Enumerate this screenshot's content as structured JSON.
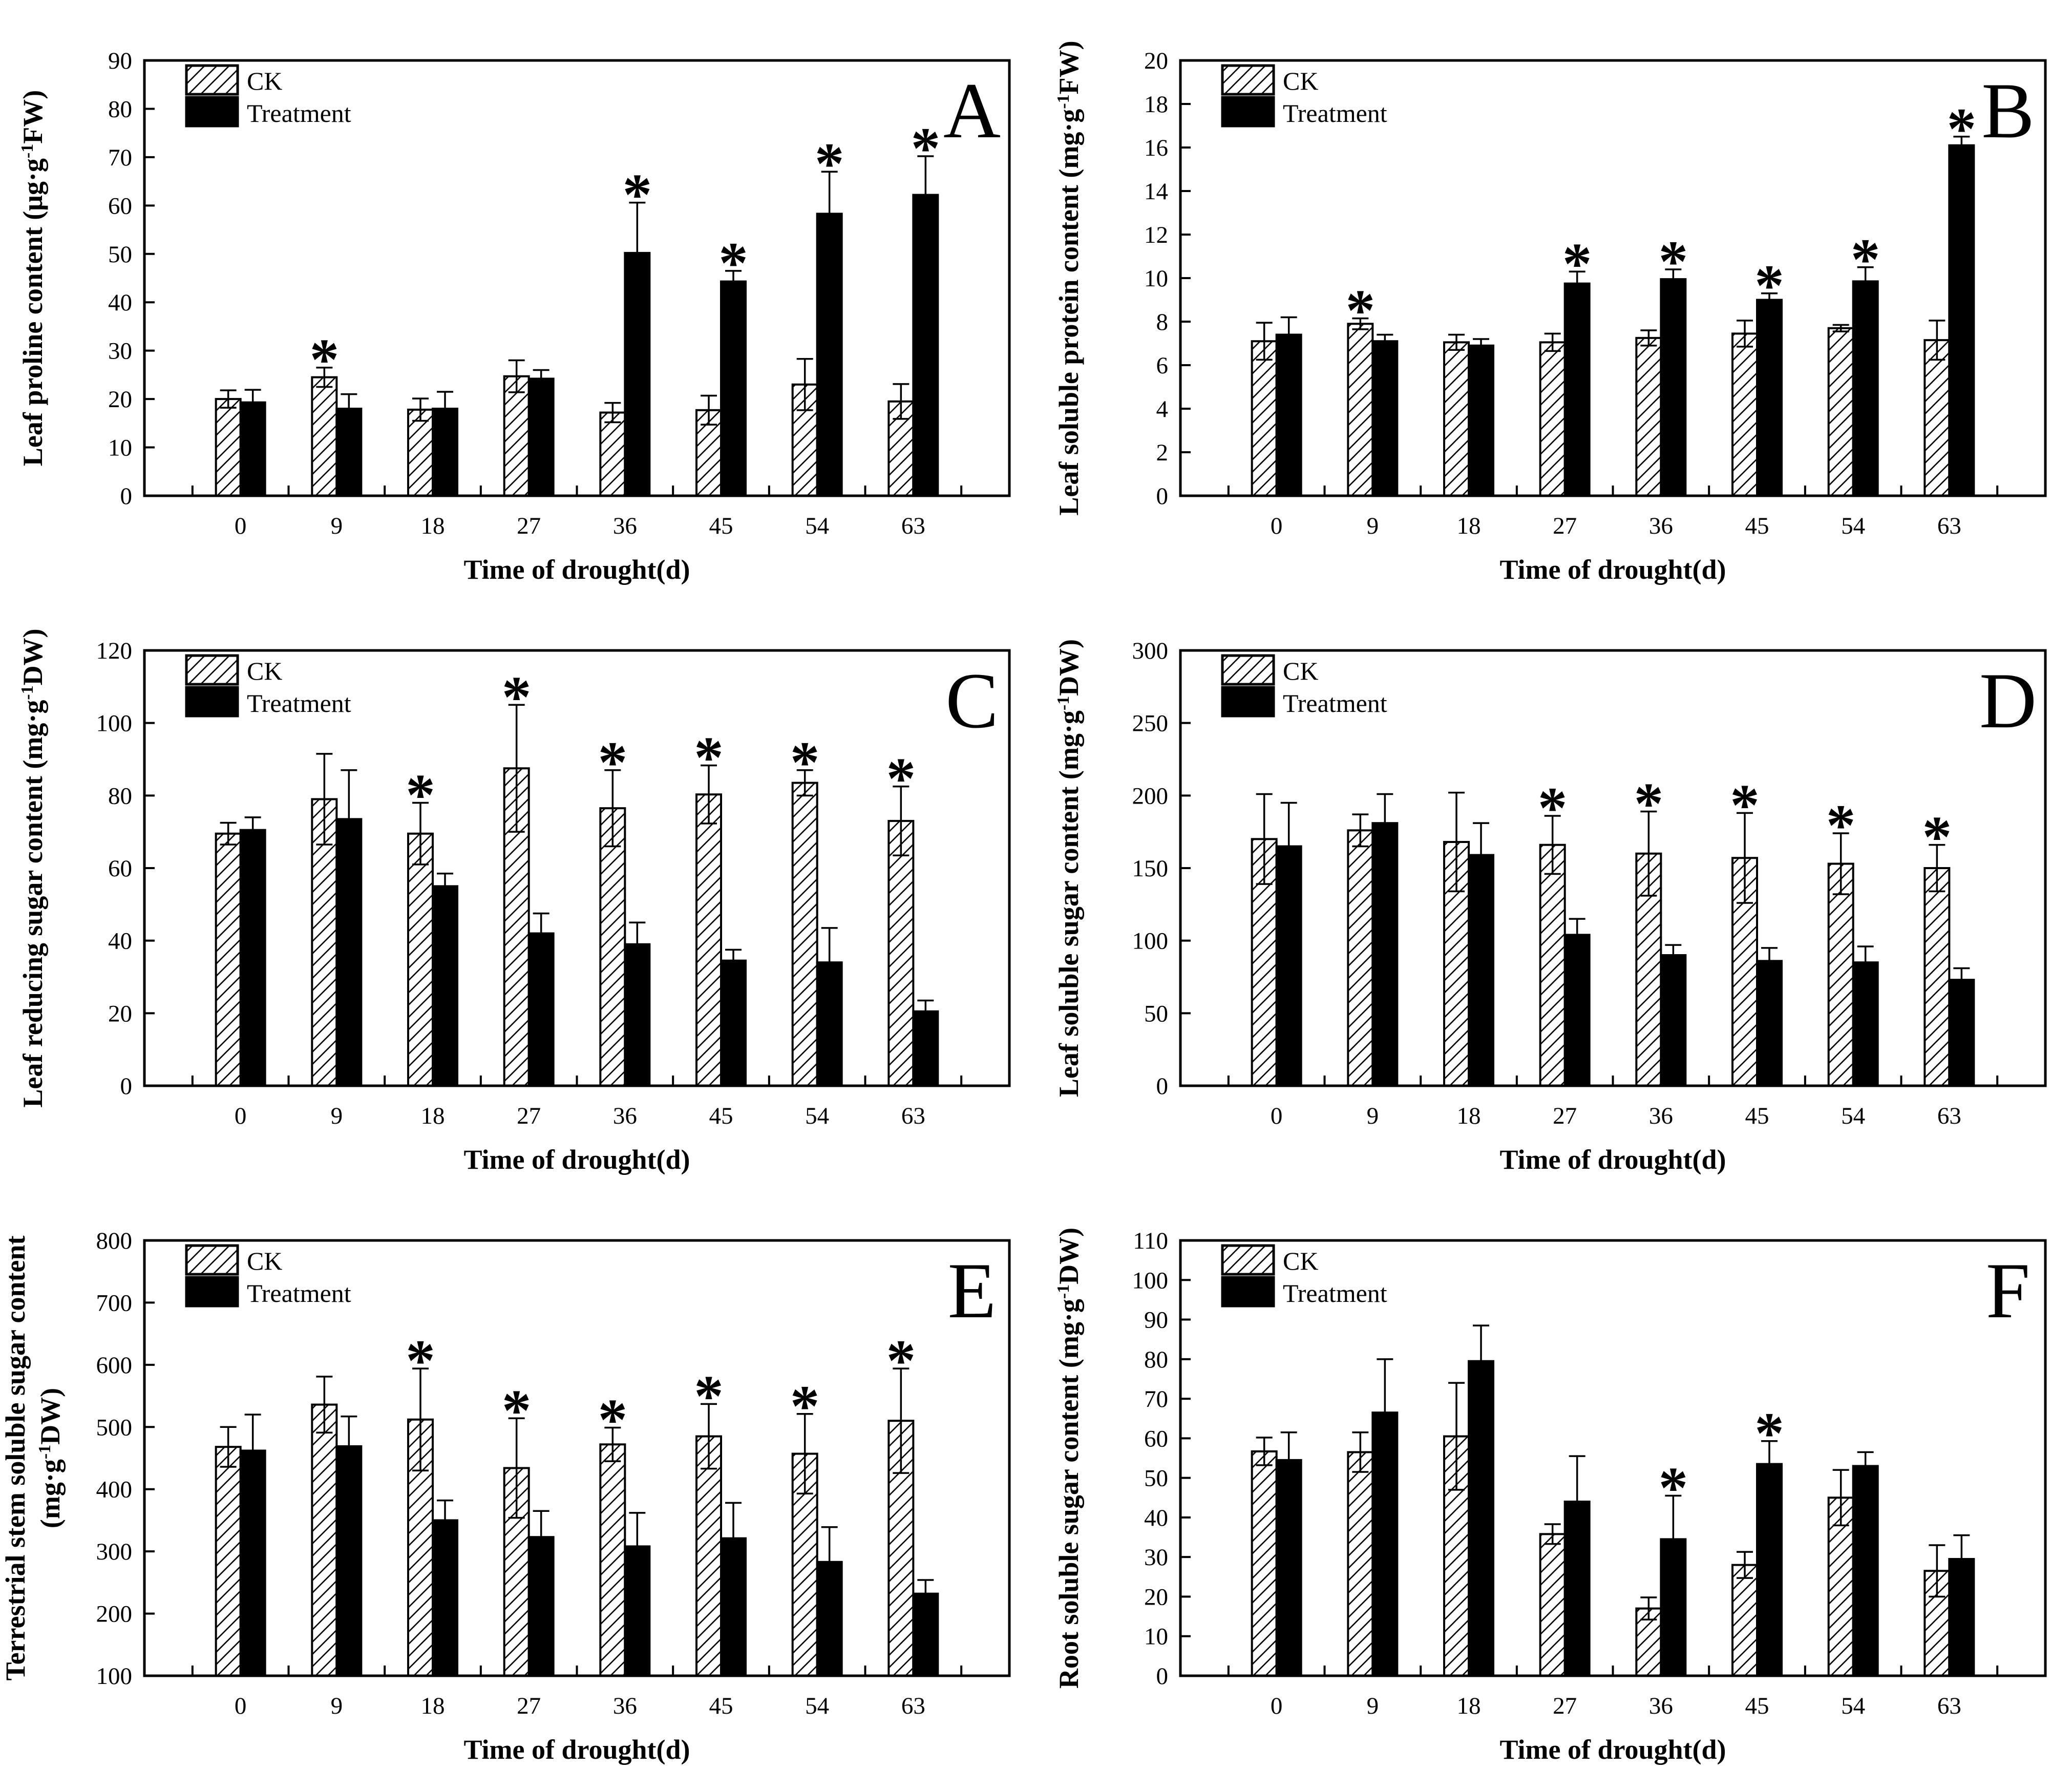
{
  "figure": {
    "xlabel": "Time of drought(d)",
    "legend": {
      "ck_label": "CK",
      "treatment_label": "Treatment"
    },
    "colors": {
      "foreground": "#000000",
      "background": "#ffffff",
      "ck_fill": "#ffffff",
      "treatment_fill": "#000000"
    }
  },
  "chart_data": [
    {
      "panel": "A",
      "type": "bar",
      "ylabel": "Leaf proline content (μg·g^{-1}FW)",
      "ylabel2": null,
      "xlabel": "Time of drought(d)",
      "ylim": [
        0,
        90
      ],
      "ystep": 10,
      "grid": false,
      "legend_position": "top-left",
      "categories": [
        "0",
        "9",
        "18",
        "27",
        "36",
        "45",
        "54",
        "63"
      ],
      "series": [
        {
          "name": "CK",
          "values": [
            20.0,
            24.5,
            17.8,
            24.7,
            17.2,
            17.7,
            23.0,
            19.5
          ],
          "errors": [
            1.8,
            2.0,
            2.3,
            3.3,
            2.0,
            3.0,
            5.3,
            3.6
          ]
        },
        {
          "name": "Treatment",
          "values": [
            19.3,
            18.0,
            18.0,
            24.2,
            50.2,
            44.3,
            58.3,
            62.2
          ],
          "errors": [
            2.6,
            3.0,
            3.5,
            1.8,
            10.4,
            2.2,
            8.7,
            8.0
          ]
        }
      ],
      "significance": [
        null,
        "CK",
        null,
        null,
        "T",
        "T",
        "T",
        "T"
      ]
    },
    {
      "panel": "B",
      "type": "bar",
      "ylabel": "Leaf soluble protein content (mg·g^{-1}FW)",
      "ylabel2": null,
      "xlabel": "Time of drought(d)",
      "ylim": [
        0,
        20
      ],
      "ystep": 2,
      "grid": false,
      "legend_position": "top-left",
      "categories": [
        "0",
        "9",
        "18",
        "27",
        "36",
        "45",
        "54",
        "63"
      ],
      "series": [
        {
          "name": "CK",
          "values": [
            7.1,
            7.9,
            7.05,
            7.05,
            7.25,
            7.45,
            7.7,
            7.15
          ],
          "errors": [
            0.85,
            0.25,
            0.35,
            0.4,
            0.35,
            0.6,
            0.15,
            0.9
          ]
        },
        {
          "name": "Treatment",
          "values": [
            7.4,
            7.1,
            6.9,
            9.75,
            9.95,
            9.0,
            9.85,
            16.1
          ],
          "errors": [
            0.8,
            0.3,
            0.3,
            0.55,
            0.45,
            0.3,
            0.65,
            0.4
          ]
        }
      ],
      "significance": [
        null,
        "CK",
        null,
        "T",
        "T",
        "T",
        "T",
        "T"
      ]
    },
    {
      "panel": "C",
      "type": "bar",
      "ylabel": "Leaf reducing sugar content (mg·g^{-1}DW)",
      "ylabel2": null,
      "xlabel": "Time of drought(d)",
      "ylim": [
        0,
        120
      ],
      "ystep": 20,
      "grid": false,
      "legend_position": "top-left",
      "categories": [
        "0",
        "9",
        "18",
        "27",
        "36",
        "45",
        "54",
        "63"
      ],
      "series": [
        {
          "name": "CK",
          "values": [
            69.5,
            79.0,
            69.5,
            87.5,
            76.5,
            80.3,
            83.5,
            73.0
          ],
          "errors": [
            3.0,
            12.5,
            8.5,
            17.5,
            10.5,
            8.0,
            3.5,
            9.5
          ]
        },
        {
          "name": "Treatment",
          "values": [
            70.5,
            73.5,
            55.0,
            42.0,
            39.0,
            34.5,
            34.0,
            20.5
          ],
          "errors": [
            3.5,
            13.5,
            3.5,
            5.5,
            6.0,
            3.0,
            9.5,
            3.0
          ]
        }
      ],
      "significance": [
        null,
        null,
        "CK",
        "CK",
        "CK",
        "CK",
        "CK",
        "CK"
      ]
    },
    {
      "panel": "D",
      "type": "bar",
      "ylabel": "Leaf soluble sugar content (mg·g^{-1}DW)",
      "ylabel2": null,
      "xlabel": "Time of drought(d)",
      "ylim": [
        0,
        300
      ],
      "ystep": 50,
      "grid": false,
      "legend_position": "top-left",
      "categories": [
        "0",
        "9",
        "18",
        "27",
        "36",
        "45",
        "54",
        "63"
      ],
      "series": [
        {
          "name": "CK",
          "values": [
            170,
            176,
            168,
            166,
            160,
            157,
            153,
            150
          ],
          "errors": [
            31,
            11,
            34,
            20,
            29,
            31,
            21,
            16
          ]
        },
        {
          "name": "Treatment",
          "values": [
            165,
            181,
            159,
            104,
            90,
            86,
            85,
            73
          ],
          "errors": [
            30,
            20,
            22,
            11,
            7,
            9,
            11,
            8
          ]
        }
      ],
      "significance": [
        null,
        null,
        null,
        "CK",
        "CK",
        "CK",
        "CK",
        "CK"
      ]
    },
    {
      "panel": "E",
      "type": "bar",
      "ylabel": "Terrestrial stem soluble sugar content",
      "ylabel2": "(mg·g^{-1}DW)",
      "xlabel": "Time of drought(d)",
      "ylim": [
        100,
        800
      ],
      "ystep": 100,
      "grid": false,
      "legend_position": "top-left",
      "categories": [
        "0",
        "9",
        "18",
        "27",
        "36",
        "45",
        "54",
        "63"
      ],
      "series": [
        {
          "name": "CK",
          "values": [
            468,
            536,
            512,
            434,
            472,
            485,
            457,
            510
          ],
          "errors": [
            32,
            45,
            82,
            80,
            27,
            52,
            64,
            84
          ]
        },
        {
          "name": "Treatment",
          "values": [
            462,
            469,
            350,
            323,
            308,
            321,
            283,
            232
          ],
          "errors": [
            58,
            48,
            32,
            42,
            54,
            57,
            56,
            22
          ]
        }
      ],
      "significance": [
        null,
        null,
        "CK",
        "CK",
        "CK",
        "CK",
        "CK",
        "CK"
      ]
    },
    {
      "panel": "F",
      "type": "bar",
      "ylabel": "Root soluble sugar content (mg·g^{-1}DW)",
      "ylabel2": null,
      "xlabel": "Time of drought(d)",
      "ylim": [
        0,
        110
      ],
      "ystep": 10,
      "grid": false,
      "legend_position": "top-left",
      "categories": [
        "0",
        "9",
        "18",
        "27",
        "36",
        "45",
        "54",
        "63"
      ],
      "series": [
        {
          "name": "CK",
          "values": [
            56.7,
            56.5,
            60.5,
            35.8,
            17.0,
            28.0,
            45.0,
            26.5
          ],
          "errors": [
            3.5,
            5.0,
            13.5,
            2.5,
            2.8,
            3.3,
            7.0,
            6.5
          ]
        },
        {
          "name": "Treatment",
          "values": [
            54.5,
            66.5,
            79.5,
            44.0,
            34.5,
            53.5,
            53.0,
            29.5
          ],
          "errors": [
            7.0,
            13.5,
            9.0,
            11.5,
            11.0,
            5.8,
            3.5,
            6.0
          ]
        }
      ],
      "significance": [
        null,
        null,
        null,
        null,
        "T",
        "T",
        null,
        null
      ]
    }
  ]
}
